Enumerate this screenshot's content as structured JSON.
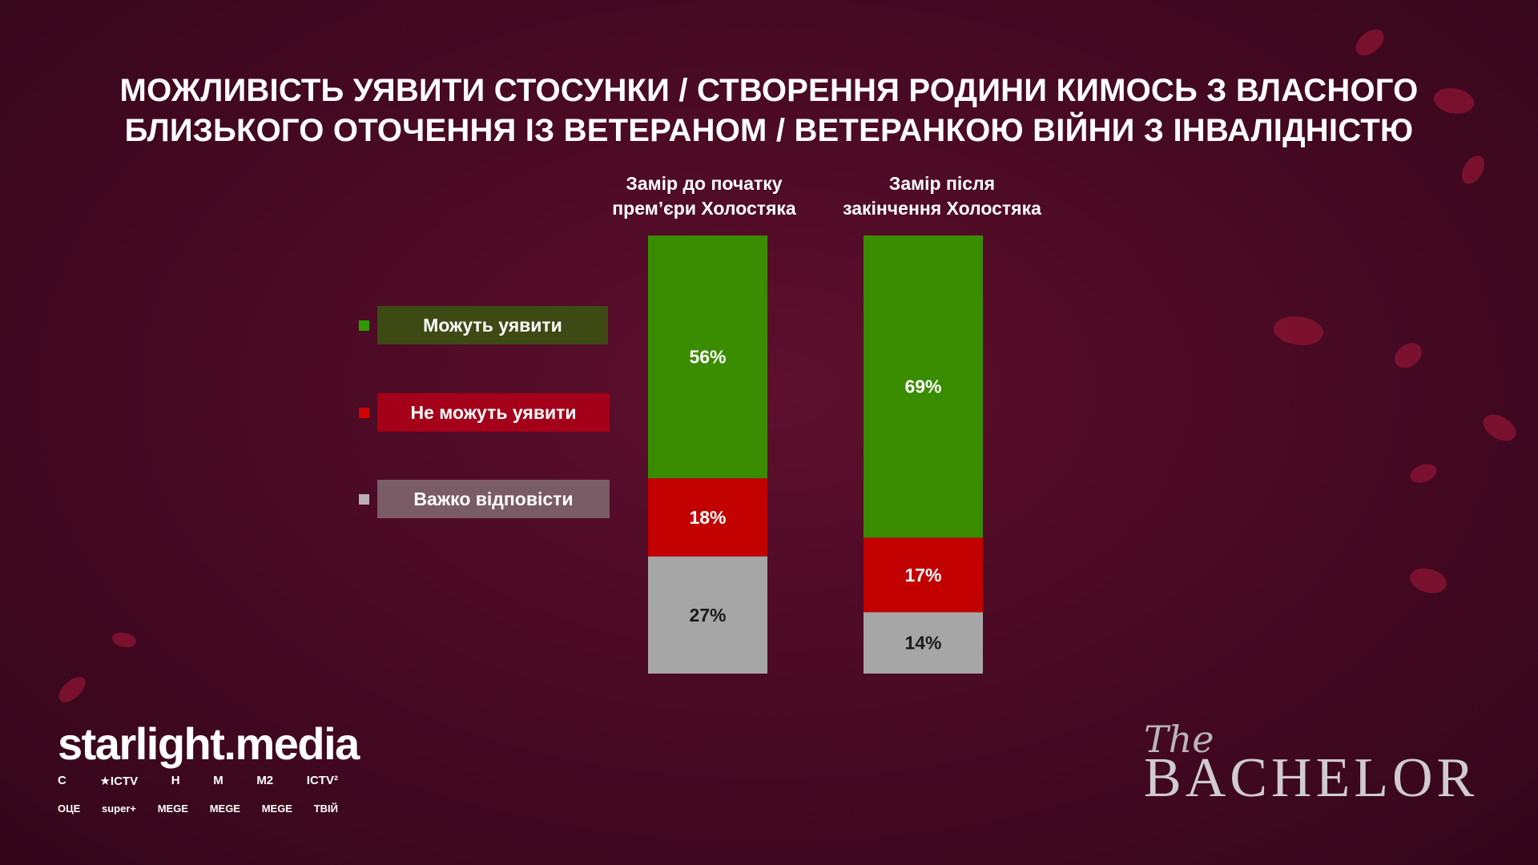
{
  "title_line1": "МОЖЛИВІСТЬ УЯВИТИ СТОСУНКИ / СТВОРЕННЯ РОДИНИ КИМОСЬ З ВЛАСНОГО",
  "title_line2": "БЛИЗЬКОГО ОТОЧЕННЯ ІЗ ВЕТЕРАНОМ / ВЕТЕРАНКОЮ ВІЙНИ З ІНВАЛІДНІСТЮ",
  "columns": [
    {
      "line1": "Замір до початку",
      "line2": "прем’єри Холостяка"
    },
    {
      "line1": "Замір після",
      "line2": "закінчення Холостяка"
    }
  ],
  "chart_data": {
    "type": "bar",
    "stacked": true,
    "categories": [
      "Замір до початку прем’єри Холостяка",
      "Замір після закінчення Холостяка"
    ],
    "series": [
      {
        "name": "Можуть уявити",
        "values": [
          56,
          69
        ],
        "color": "#3a8c00",
        "label_color": "#ffffff"
      },
      {
        "name": "Не можуть уявити",
        "values": [
          18,
          17
        ],
        "color": "#c20000",
        "label_color": "#ffffff"
      },
      {
        "name": "Важко відповісти",
        "values": [
          27,
          14
        ],
        "color": "#a6a6a6",
        "label_color": "#1a1a1a"
      }
    ],
    "value_suffix": "%"
  },
  "legend": [
    {
      "label": "Можуть уявити",
      "box_color": "#3d4a14",
      "square_color": "#2e9a00"
    },
    {
      "label": "Не можуть уявити",
      "box_color": "#a4001a",
      "square_color": "#d00000"
    },
    {
      "label": "Важко відповісти",
      "box_color": "#7a5c66",
      "square_color": "#b8b0b4"
    }
  ],
  "brand": {
    "starlight": "starlight.media",
    "channels_row1": [
      "С",
      "★ICTV",
      "Н",
      "М",
      "М2",
      "ICTV²"
    ],
    "channels_row2": [
      "ОЦЕ",
      "super+",
      "MEGE",
      "MEGE",
      "MEGE",
      "ТВІЙ"
    ],
    "show_the": "The",
    "show_name": "BACHELOR"
  }
}
